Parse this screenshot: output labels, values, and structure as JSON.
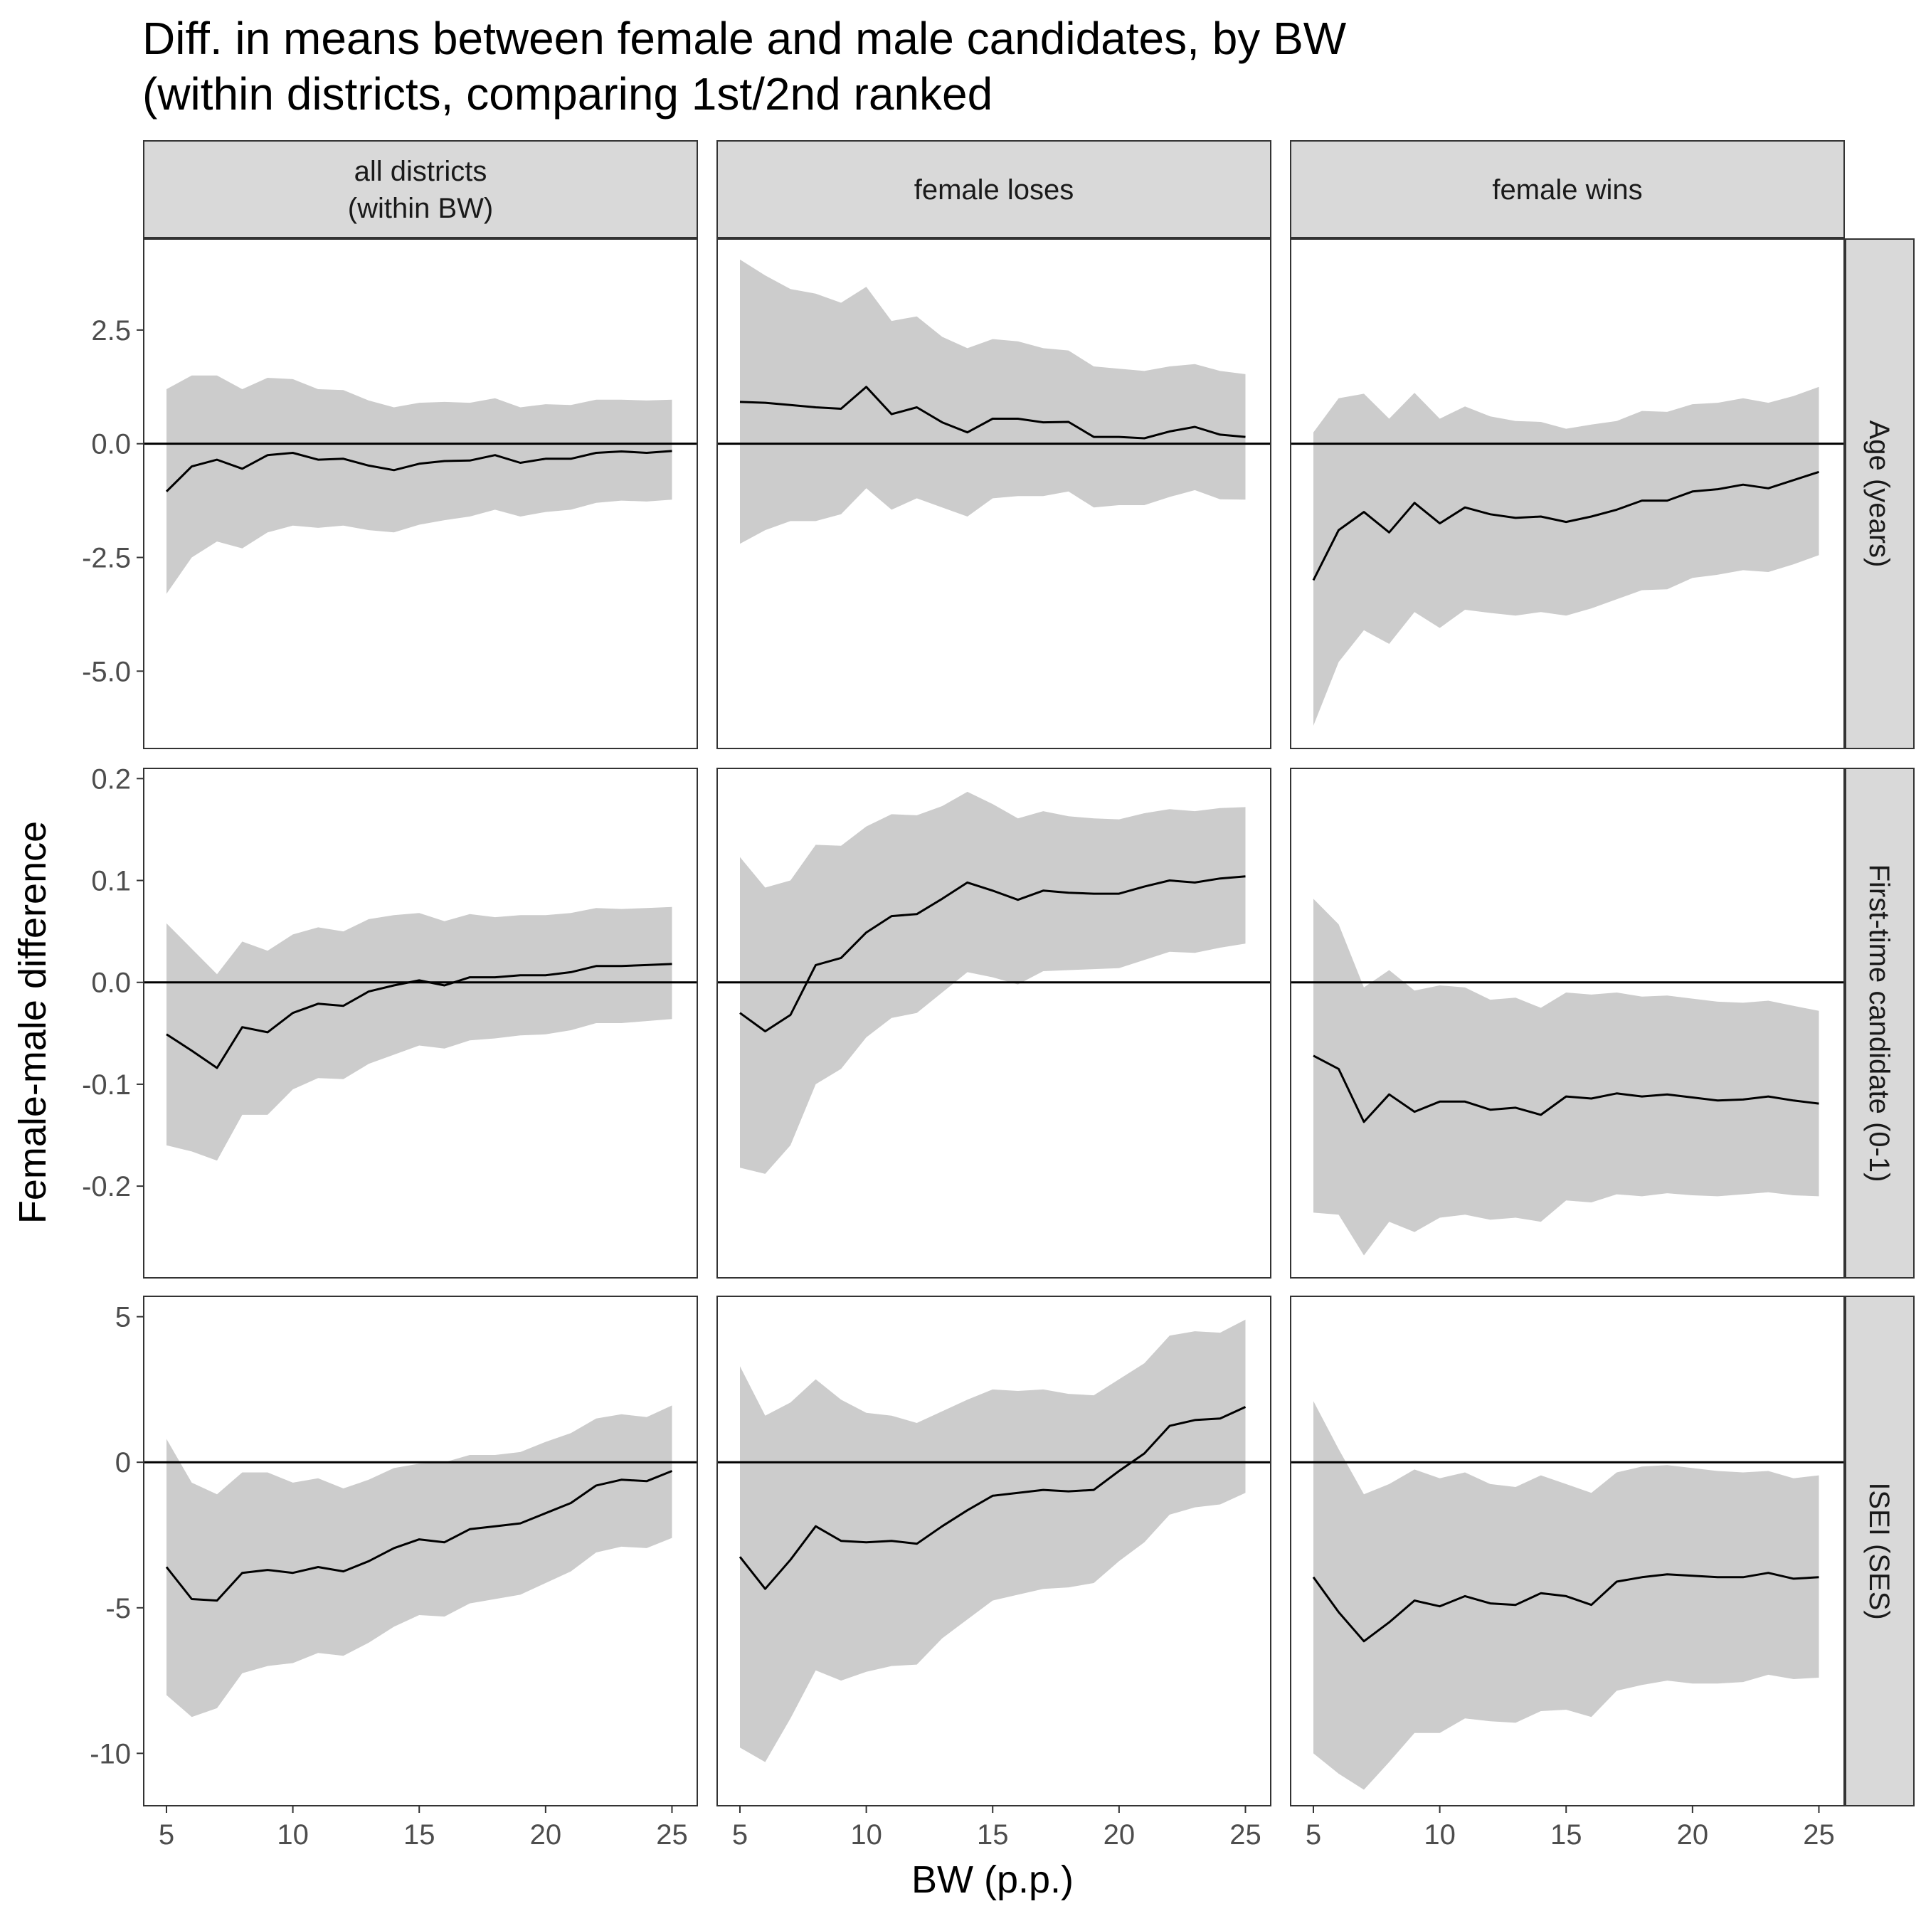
{
  "chart_data": {
    "type": "line",
    "title_line1": "Diff. in means between female and male candidates, by BW",
    "title_line2": "(within districts, comparing 1st/2nd ranked",
    "xlabel": "BW (p.p.)",
    "ylabel": "Female-male difference",
    "x": [
      5,
      6,
      7,
      8,
      9,
      10,
      11,
      12,
      13,
      14,
      15,
      16,
      17,
      18,
      19,
      20,
      21,
      22,
      23,
      24,
      25
    ],
    "x_ticks": [
      5,
      10,
      15,
      20,
      25
    ],
    "xlim": [
      4.1,
      26.0
    ],
    "columns": [
      "all districts\n(within BW)",
      "female loses",
      "female wins"
    ],
    "column_labels": [
      {
        "line1": "all districts",
        "line2": "(within BW)"
      },
      {
        "line1": "female loses",
        "line2": ""
      },
      {
        "line1": "female wins",
        "line2": ""
      }
    ],
    "rows": [
      {
        "label": "Age (years)",
        "ylim": [
          -6.7,
          4.5
        ],
        "y_ticks": [
          2.5,
          0,
          -2.5,
          -5
        ],
        "y_tick_labels": [
          "2.5",
          "0.0",
          "-2.5",
          "-5.0"
        ],
        "panels": [
          {
            "estimate": [
              -1.05,
              -0.5,
              -0.35,
              -0.55,
              -0.25,
              -0.2,
              -0.35,
              -0.33,
              -0.48,
              -0.58,
              -0.44,
              -0.38,
              -0.37,
              -0.25,
              -0.42,
              -0.33,
              -0.33,
              -0.2,
              -0.17,
              -0.2,
              -0.16
            ],
            "upper": [
              1.2,
              1.5,
              1.5,
              1.2,
              1.45,
              1.42,
              1.2,
              1.18,
              0.95,
              0.8,
              0.9,
              0.92,
              0.9,
              1.0,
              0.8,
              0.87,
              0.85,
              0.97,
              0.97,
              0.95,
              0.97
            ],
            "lower": [
              -3.3,
              -2.5,
              -2.15,
              -2.3,
              -1.95,
              -1.8,
              -1.85,
              -1.8,
              -1.9,
              -1.95,
              -1.78,
              -1.68,
              -1.6,
              -1.45,
              -1.6,
              -1.5,
              -1.45,
              -1.3,
              -1.25,
              -1.27,
              -1.23
            ]
          },
          {
            "estimate": [
              0.92,
              0.9,
              0.85,
              0.8,
              0.77,
              1.25,
              0.65,
              0.8,
              0.47,
              0.25,
              0.55,
              0.55,
              0.47,
              0.48,
              0.15,
              0.15,
              0.12,
              0.27,
              0.37,
              0.2,
              0.15
            ],
            "upper": [
              4.05,
              3.7,
              3.4,
              3.3,
              3.1,
              3.45,
              2.7,
              2.8,
              2.35,
              2.1,
              2.3,
              2.25,
              2.1,
              2.05,
              1.7,
              1.65,
              1.6,
              1.7,
              1.75,
              1.6,
              1.53
            ],
            "lower": [
              -2.2,
              -1.9,
              -1.7,
              -1.7,
              -1.55,
              -0.98,
              -1.45,
              -1.2,
              -1.4,
              -1.6,
              -1.2,
              -1.15,
              -1.15,
              -1.05,
              -1.4,
              -1.35,
              -1.35,
              -1.17,
              -1.02,
              -1.22,
              -1.23
            ]
          },
          {
            "estimate": [
              -3.0,
              -1.9,
              -1.5,
              -1.95,
              -1.3,
              -1.75,
              -1.4,
              -1.55,
              -1.63,
              -1.6,
              -1.72,
              -1.6,
              -1.45,
              -1.25,
              -1.25,
              -1.05,
              -1.0,
              -0.9,
              -0.98,
              -0.8,
              -0.62
            ],
            "upper": [
              0.25,
              1.0,
              1.1,
              0.55,
              1.12,
              0.55,
              0.82,
              0.6,
              0.5,
              0.48,
              0.33,
              0.42,
              0.5,
              0.72,
              0.7,
              0.87,
              0.9,
              1.0,
              0.9,
              1.05,
              1.25
            ],
            "lower": [
              -6.2,
              -4.8,
              -4.1,
              -4.4,
              -3.7,
              -4.05,
              -3.65,
              -3.72,
              -3.78,
              -3.7,
              -3.78,
              -3.62,
              -3.42,
              -3.22,
              -3.2,
              -2.95,
              -2.88,
              -2.78,
              -2.82,
              -2.65,
              -2.45
            ]
          }
        ]
      },
      {
        "label": "First-time candidate (0-1)",
        "ylim": [
          -0.29,
          0.21
        ],
        "y_ticks": [
          0.2,
          0.1,
          0.0,
          -0.1,
          -0.2
        ],
        "y_tick_labels": [
          "0.2",
          "0.1",
          "0.0",
          "-0.1",
          "-0.2"
        ],
        "panels": [
          {
            "estimate": [
              -0.051,
              -0.067,
              -0.084,
              -0.044,
              -0.049,
              -0.03,
              -0.021,
              -0.023,
              -0.009,
              -0.003,
              0.002,
              -0.003,
              0.005,
              0.005,
              0.007,
              0.007,
              0.01,
              0.016,
              0.016,
              0.017,
              0.018
            ],
            "upper": [
              0.058,
              0.033,
              0.008,
              0.04,
              0.031,
              0.047,
              0.054,
              0.05,
              0.062,
              0.066,
              0.068,
              0.06,
              0.067,
              0.064,
              0.066,
              0.066,
              0.068,
              0.073,
              0.072,
              0.073,
              0.074
            ],
            "lower": [
              -0.16,
              -0.166,
              -0.175,
              -0.13,
              -0.13,
              -0.105,
              -0.094,
              -0.095,
              -0.08,
              -0.071,
              -0.062,
              -0.065,
              -0.057,
              -0.055,
              -0.052,
              -0.051,
              -0.047,
              -0.04,
              -0.04,
              -0.038,
              -0.036
            ]
          },
          {
            "estimate": [
              -0.03,
              -0.048,
              -0.032,
              0.017,
              0.024,
              0.049,
              0.065,
              0.067,
              0.082,
              0.098,
              0.09,
              0.081,
              0.09,
              0.088,
              0.087,
              0.087,
              0.094,
              0.1,
              0.098,
              0.102,
              0.104
            ],
            "upper": [
              0.123,
              0.093,
              0.1,
              0.135,
              0.134,
              0.153,
              0.165,
              0.164,
              0.173,
              0.187,
              0.175,
              0.161,
              0.168,
              0.163,
              0.161,
              0.16,
              0.166,
              0.17,
              0.168,
              0.171,
              0.172
            ],
            "lower": [
              -0.182,
              -0.188,
              -0.16,
              -0.1,
              -0.085,
              -0.054,
              -0.035,
              -0.03,
              -0.01,
              0.01,
              0.005,
              -0.002,
              0.011,
              0.012,
              0.013,
              0.014,
              0.022,
              0.03,
              0.029,
              0.034,
              0.038
            ]
          },
          {
            "estimate": [
              -0.072,
              -0.085,
              -0.137,
              -0.11,
              -0.127,
              -0.117,
              -0.117,
              -0.125,
              -0.123,
              -0.13,
              -0.112,
              -0.114,
              -0.109,
              -0.112,
              -0.11,
              -0.113,
              -0.116,
              -0.115,
              -0.112,
              -0.116,
              -0.119
            ],
            "upper": [
              0.082,
              0.057,
              -0.005,
              0.012,
              -0.008,
              -0.003,
              -0.005,
              -0.017,
              -0.015,
              -0.025,
              -0.01,
              -0.012,
              -0.01,
              -0.014,
              -0.013,
              -0.016,
              -0.019,
              -0.02,
              -0.018,
              -0.023,
              -0.028
            ],
            "lower": [
              -0.226,
              -0.228,
              -0.268,
              -0.235,
              -0.245,
              -0.231,
              -0.228,
              -0.233,
              -0.231,
              -0.235,
              -0.214,
              -0.216,
              -0.208,
              -0.21,
              -0.207,
              -0.209,
              -0.21,
              -0.208,
              -0.206,
              -0.209,
              -0.21
            ]
          }
        ]
      },
      {
        "label": "ISEI (SES)",
        "ylim": [
          -11.8,
          5.7
        ],
        "y_ticks": [
          5,
          0,
          -5,
          -10
        ],
        "y_tick_labels": [
          "5",
          "0",
          "-5",
          "-10"
        ],
        "panels": [
          {
            "estimate": [
              -3.6,
              -4.7,
              -4.75,
              -3.8,
              -3.7,
              -3.8,
              -3.6,
              -3.75,
              -3.4,
              -2.95,
              -2.65,
              -2.75,
              -2.3,
              -2.2,
              -2.1,
              -1.75,
              -1.4,
              -0.8,
              -0.6,
              -0.65,
              -0.3
            ],
            "upper": [
              0.8,
              -0.7,
              -1.1,
              -0.35,
              -0.35,
              -0.7,
              -0.55,
              -0.9,
              -0.6,
              -0.2,
              -0.05,
              0.0,
              0.25,
              0.25,
              0.35,
              0.7,
              1.0,
              1.5,
              1.65,
              1.55,
              1.95
            ],
            "lower": [
              -8.0,
              -8.75,
              -8.45,
              -7.25,
              -7.0,
              -6.9,
              -6.55,
              -6.65,
              -6.2,
              -5.65,
              -5.25,
              -5.3,
              -4.85,
              -4.7,
              -4.55,
              -4.15,
              -3.75,
              -3.1,
              -2.9,
              -2.95,
              -2.6
            ]
          },
          {
            "estimate": [
              -3.25,
              -4.35,
              -3.35,
              -2.2,
              -2.7,
              -2.75,
              -2.7,
              -2.8,
              -2.2,
              -1.65,
              -1.15,
              -1.05,
              -0.95,
              -1.0,
              -0.95,
              -0.3,
              0.3,
              1.25,
              1.45,
              1.5,
              1.9
            ],
            "upper": [
              3.3,
              1.6,
              2.05,
              2.85,
              2.15,
              1.7,
              1.6,
              1.35,
              1.75,
              2.15,
              2.5,
              2.45,
              2.5,
              2.35,
              2.3,
              2.85,
              3.4,
              4.35,
              4.5,
              4.45,
              4.9
            ],
            "lower": [
              -9.8,
              -10.3,
              -8.8,
              -7.15,
              -7.5,
              -7.2,
              -7.0,
              -6.95,
              -6.05,
              -5.4,
              -4.75,
              -4.55,
              -4.35,
              -4.3,
              -4.15,
              -3.4,
              -2.75,
              -1.8,
              -1.55,
              -1.45,
              -1.05
            ]
          },
          {
            "estimate": [
              -3.95,
              -5.15,
              -6.15,
              -5.5,
              -4.75,
              -4.95,
              -4.6,
              -4.85,
              -4.9,
              -4.5,
              -4.6,
              -4.9,
              -4.1,
              -3.95,
              -3.85,
              -3.9,
              -3.95,
              -3.95,
              -3.8,
              -4.0,
              -3.95
            ],
            "upper": [
              2.1,
              0.45,
              -1.1,
              -0.75,
              -0.25,
              -0.55,
              -0.35,
              -0.75,
              -0.85,
              -0.45,
              -0.75,
              -1.05,
              -0.35,
              -0.15,
              -0.1,
              -0.2,
              -0.3,
              -0.35,
              -0.3,
              -0.55,
              -0.45
            ],
            "lower": [
              -10.0,
              -10.7,
              -11.25,
              -10.3,
              -9.3,
              -9.3,
              -8.8,
              -8.9,
              -8.95,
              -8.55,
              -8.5,
              -8.75,
              -7.85,
              -7.65,
              -7.5,
              -7.6,
              -7.6,
              -7.55,
              -7.3,
              -7.45,
              -7.4
            ]
          }
        ]
      }
    ],
    "colors": {
      "ribbon": "#cccccc",
      "line": "#000000",
      "strip_fill": "#d9d9d9",
      "panel_border": "#333333",
      "tick_text": "#4d4d4d"
    }
  }
}
